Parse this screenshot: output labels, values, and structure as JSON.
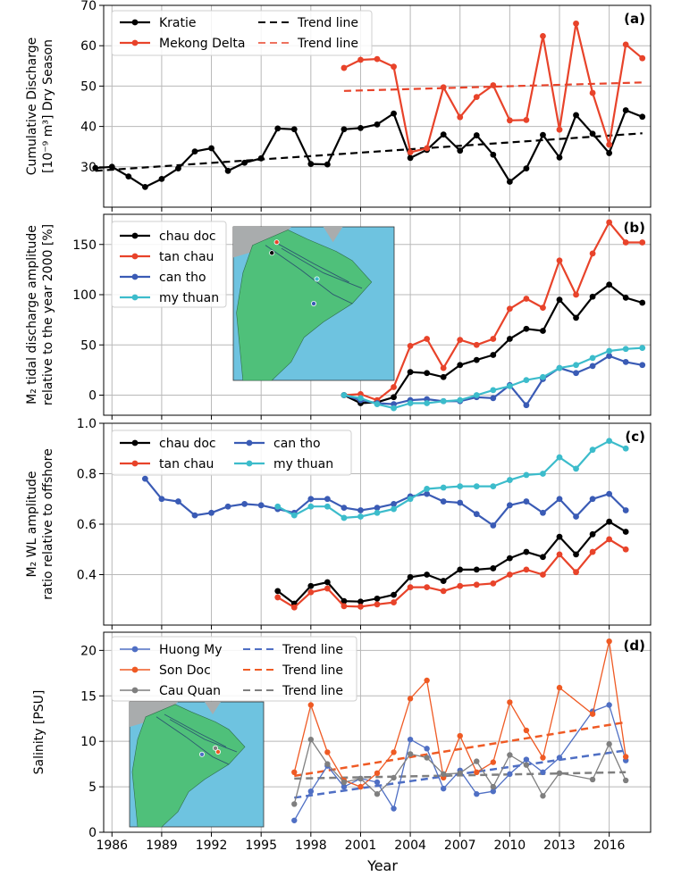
{
  "figure": {
    "shared_x": {
      "xlabel": "Year",
      "ticks": [
        1986,
        1989,
        1992,
        1995,
        1998,
        2001,
        2004,
        2007,
        2010,
        2013,
        2016
      ],
      "xlim": [
        1985.5,
        2018.5
      ]
    },
    "colors": {
      "black": "#000000",
      "red": "#e8432a",
      "blue": "#3a5bb5",
      "cyan": "#3cbccb",
      "orange": "#ef5a24",
      "slate": "#4f6fc4",
      "gray": "#7f7f7f",
      "map_sea": "#6ec3e0",
      "map_land": "#4fc07a",
      "map_gray": "#a9acad"
    }
  },
  "chart_data": [
    {
      "type": "line",
      "panel_label": "(a)",
      "ylabel_line1": "Cumulative Discharge",
      "ylabel_line2": "[10⁻⁹ m³] Dry Season",
      "ylim": [
        20,
        70
      ],
      "yticks": [
        30,
        40,
        50,
        60,
        70
      ],
      "grid": true,
      "legend": "top-left",
      "legend_entries": [
        "Kratie",
        "Mekong Delta",
        "Trend line",
        "Trend line"
      ],
      "series": [
        {
          "name": "Kratie",
          "color": "#000000",
          "x": [
            1985,
            1986,
            1987,
            1988,
            1989,
            1990,
            1991,
            1992,
            1993,
            1994,
            1995,
            1996,
            1997,
            1998,
            1999,
            2000,
            2001,
            2002,
            2003,
            2004,
            2005,
            2006,
            2007,
            2008,
            2009,
            2010,
            2011,
            2012,
            2013,
            2014,
            2015,
            2016,
            2017,
            2018
          ],
          "y": [
            29.7,
            30.0,
            27.6,
            25.0,
            27.0,
            29.6,
            33.8,
            34.6,
            29.0,
            31.0,
            32.1,
            39.5,
            39.3,
            30.7,
            30.6,
            39.3,
            39.6,
            40.5,
            43.2,
            32.2,
            34.2,
            38.0,
            34.0,
            37.8,
            33.0,
            26.3,
            29.6,
            37.9,
            32.3,
            42.8,
            38.2,
            33.4,
            44.0,
            42.4
          ]
        },
        {
          "name": "Mekong Delta",
          "color": "#e8432a",
          "x": [
            2000,
            2001,
            2002,
            2003,
            2004,
            2005,
            2006,
            2007,
            2008,
            2009,
            2010,
            2011,
            2012,
            2013,
            2014,
            2015,
            2016,
            2017,
            2018
          ],
          "y": [
            54.5,
            56.5,
            56.7,
            54.8,
            33.6,
            34.6,
            49.7,
            42.3,
            47.3,
            50.2,
            41.5,
            41.6,
            62.4,
            39.2,
            65.5,
            48.3,
            35.5,
            60.3,
            56.9
          ]
        }
      ],
      "trends": [
        {
          "name": "Trend line",
          "color": "#000000",
          "x": [
            1985,
            2018
          ],
          "y": [
            29.0,
            38.3
          ]
        },
        {
          "name": "Trend line",
          "color": "#e8432a",
          "x": [
            2000,
            2018
          ],
          "y": [
            48.8,
            50.9
          ]
        }
      ]
    },
    {
      "type": "line",
      "panel_label": "(b)",
      "ylabel_line1": "M₂ tidal discharge amplitude",
      "ylabel_line2": "relative to the year 2000 [%]",
      "ylim": [
        -20,
        180
      ],
      "yticks": [
        0,
        50,
        100,
        150
      ],
      "grid": true,
      "legend": "top-left",
      "inset_map": "upper-middle",
      "series": [
        {
          "name": "chau doc",
          "color": "#000000",
          "x": [
            2000,
            2001,
            2002,
            2003,
            2004,
            2005,
            2006,
            2007,
            2008,
            2009,
            2010,
            2011,
            2012,
            2013,
            2014,
            2015,
            2016,
            2017,
            2018
          ],
          "y": [
            0,
            -8,
            -7,
            -2,
            23,
            22,
            18,
            30,
            35,
            40,
            56,
            66,
            64,
            95,
            77,
            98,
            110,
            97,
            92
          ]
        },
        {
          "name": "tan chau",
          "color": "#e8432a",
          "x": [
            2000,
            2001,
            2002,
            2003,
            2004,
            2005,
            2006,
            2007,
            2008,
            2009,
            2010,
            2011,
            2012,
            2013,
            2014,
            2015,
            2016,
            2017,
            2018
          ],
          "y": [
            0,
            1,
            -5,
            8,
            49,
            56,
            27,
            55,
            50,
            56,
            86,
            96,
            87,
            134,
            100,
            141,
            172,
            152,
            152
          ]
        },
        {
          "name": "can tho",
          "color": "#3a5bb5",
          "x": [
            2000,
            2001,
            2002,
            2003,
            2004,
            2005,
            2006,
            2007,
            2008,
            2009,
            2010,
            2011,
            2012,
            2013,
            2014,
            2015,
            2016,
            2017,
            2018
          ],
          "y": [
            0,
            -5,
            -8,
            -9,
            -5,
            -4,
            -6,
            -6,
            -2,
            -3,
            10,
            -10,
            16,
            27,
            22,
            29,
            39,
            33,
            30
          ]
        },
        {
          "name": "my thuan",
          "color": "#3cbccb",
          "x": [
            2000,
            2001,
            2002,
            2003,
            2004,
            2005,
            2006,
            2007,
            2008,
            2009,
            2010,
            2011,
            2012,
            2013,
            2014,
            2015,
            2016,
            2017,
            2018
          ],
          "y": [
            0,
            -3,
            -9,
            -13,
            -8,
            -8,
            -6,
            -5,
            0,
            5,
            9,
            15,
            18,
            27,
            30,
            37,
            44,
            46,
            47
          ]
        }
      ]
    },
    {
      "type": "line",
      "panel_label": "(c)",
      "ylabel_line1": "M₂ WL amplitude",
      "ylabel_line2": "ratio relative to offshore",
      "ylim": [
        0.2,
        1.0
      ],
      "yticks": [
        0.4,
        0.6,
        0.8,
        1.0
      ],
      "ytick_labels": [
        "0.4",
        "0.6",
        "0.8",
        "1.0"
      ],
      "grid": true,
      "legend": "top-left",
      "series": [
        {
          "name": "chau doc",
          "color": "#000000",
          "x": [
            1996,
            1997,
            1998,
            1999,
            2000,
            2001,
            2002,
            2003,
            2004,
            2005,
            2006,
            2007,
            2008,
            2009,
            2010,
            2011,
            2012,
            2013,
            2014,
            2015,
            2016,
            2017
          ],
          "y": [
            0.335,
            0.285,
            0.355,
            0.37,
            0.295,
            0.293,
            0.305,
            0.32,
            0.39,
            0.4,
            0.375,
            0.42,
            0.42,
            0.425,
            0.465,
            0.49,
            0.47,
            0.55,
            0.48,
            0.56,
            0.61,
            0.57
          ]
        },
        {
          "name": "tan chau",
          "color": "#e8432a",
          "x": [
            1996,
            1997,
            1998,
            1999,
            2000,
            2001,
            2002,
            2003,
            2004,
            2005,
            2006,
            2007,
            2008,
            2009,
            2010,
            2011,
            2012,
            2013,
            2014,
            2015,
            2016,
            2017
          ],
          "y": [
            0.31,
            0.27,
            0.33,
            0.345,
            0.275,
            0.273,
            0.282,
            0.29,
            0.35,
            0.35,
            0.335,
            0.355,
            0.36,
            0.365,
            0.4,
            0.42,
            0.4,
            0.48,
            0.41,
            0.49,
            0.54,
            0.5
          ]
        },
        {
          "name": "can tho",
          "color": "#3a5bb5",
          "x": [
            1988,
            1989,
            1990,
            1991,
            1992,
            1993,
            1994,
            1995,
            1996,
            1997,
            1998,
            1999,
            2000,
            2001,
            2002,
            2003,
            2004,
            2005,
            2006,
            2007,
            2008,
            2009,
            2010,
            2011,
            2012,
            2013,
            2014,
            2015,
            2016,
            2017
          ],
          "y": [
            0.78,
            0.7,
            0.69,
            0.635,
            0.645,
            0.67,
            0.68,
            0.675,
            0.66,
            0.645,
            0.7,
            0.7,
            0.665,
            0.655,
            0.665,
            0.68,
            0.71,
            0.72,
            0.69,
            0.685,
            0.64,
            0.595,
            0.675,
            0.69,
            0.645,
            0.7,
            0.63,
            0.7,
            0.72,
            0.655
          ]
        },
        {
          "name": "my thuan",
          "color": "#3cbccb",
          "x": [
            1996,
            1997,
            1998,
            1999,
            2000,
            2001,
            2002,
            2003,
            2004,
            2005,
            2006,
            2007,
            2008,
            2009,
            2010,
            2011,
            2012,
            2013,
            2014,
            2015,
            2016,
            2017
          ],
          "y": [
            0.67,
            0.635,
            0.67,
            0.67,
            0.625,
            0.63,
            0.645,
            0.66,
            0.7,
            0.74,
            0.745,
            0.75,
            0.75,
            0.75,
            0.775,
            0.795,
            0.8,
            0.865,
            0.82,
            0.895,
            0.93,
            0.9
          ]
        }
      ]
    },
    {
      "type": "line",
      "panel_label": "(d)",
      "ylabel_line1": "Salinity [PSU]",
      "ylabel_line2": "",
      "ylim": [
        0,
        22
      ],
      "yticks": [
        0,
        5,
        10,
        15,
        20
      ],
      "grid": true,
      "legend": "top-left",
      "inset_map": "lower-left",
      "legend_entries": [
        "Huong My",
        "Son Doc",
        "Cau Quan",
        "Trend line",
        "Trend line",
        "Trend line"
      ],
      "series": [
        {
          "name": "Huong My",
          "color": "#4f6fc4",
          "x": [
            1997,
            1998,
            1999,
            2000,
            2001,
            2002,
            2003,
            2004,
            2005,
            2006,
            2007,
            2008,
            2009,
            2010,
            2011,
            2012,
            2013,
            2015,
            2016,
            2017
          ],
          "y": [
            1.3,
            4.5,
            7.3,
            5.0,
            5.9,
            5.5,
            2.6,
            10.2,
            9.2,
            4.8,
            6.8,
            4.2,
            4.5,
            6.4,
            8.0,
            6.6,
            8.2,
            13.3,
            14.0,
            7.9
          ]
        },
        {
          "name": "Son Doc",
          "color": "#ef5a24",
          "x": [
            1997,
            1998,
            1999,
            2000,
            2001,
            2002,
            2003,
            2004,
            2005,
            2006,
            2007,
            2008,
            2009,
            2010,
            2011,
            2012,
            2013,
            2015,
            2016,
            2017
          ],
          "y": [
            6.6,
            14.0,
            8.8,
            5.7,
            5.0,
            6.5,
            8.8,
            14.7,
            16.7,
            6.0,
            10.6,
            6.6,
            7.7,
            14.3,
            11.2,
            8.2,
            15.9,
            13.0,
            21.0,
            8.3
          ]
        },
        {
          "name": "Cau Quan",
          "color": "#7f7f7f",
          "x": [
            1997,
            1998,
            1999,
            2000,
            2001,
            2002,
            2003,
            2004,
            2005,
            2006,
            2007,
            2008,
            2009,
            2010,
            2011,
            2012,
            2013,
            2015,
            2016,
            2017
          ],
          "y": [
            3.1,
            10.2,
            7.5,
            5.5,
            5.9,
            4.2,
            6.0,
            8.6,
            8.2,
            6.4,
            6.5,
            7.8,
            5.0,
            8.5,
            7.4,
            4.0,
            6.5,
            5.8,
            9.7,
            5.7
          ]
        }
      ],
      "trends": [
        {
          "name": "Trend line",
          "color": "#4f6fc4",
          "x": [
            1997,
            2017
          ],
          "y": [
            3.8,
            9.0
          ]
        },
        {
          "name": "Trend line",
          "color": "#ef5a24",
          "x": [
            1997,
            2017
          ],
          "y": [
            6.2,
            12.1
          ]
        },
        {
          "name": "Trend line",
          "color": "#7f7f7f",
          "x": [
            1997,
            2017
          ],
          "y": [
            5.9,
            6.6
          ]
        }
      ]
    }
  ]
}
